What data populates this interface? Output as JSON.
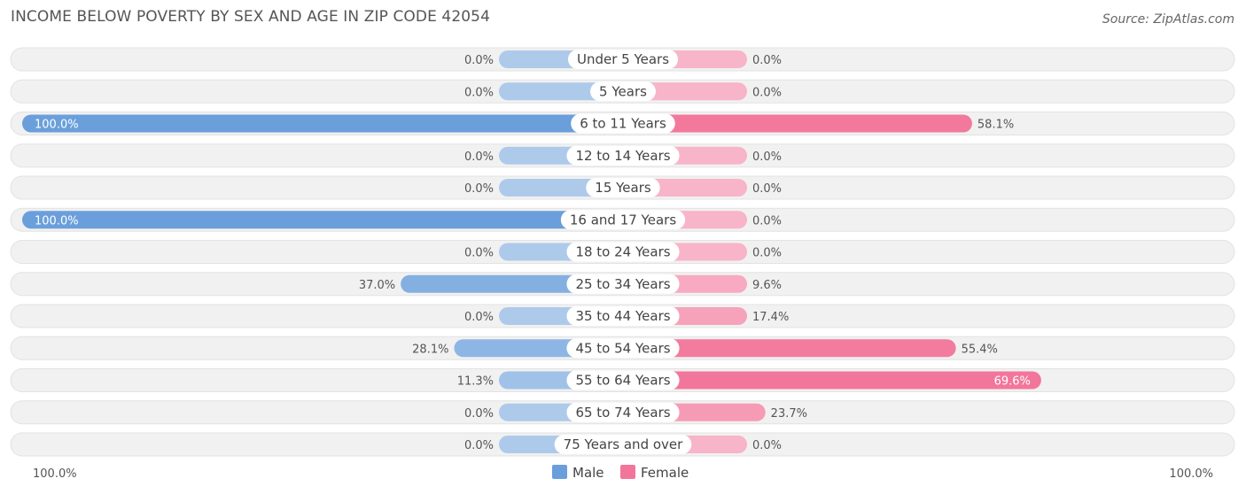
{
  "header": {
    "title": "INCOME BELOW POVERTY BY SEX AND AGE IN ZIP CODE 42054",
    "source": "Source: ZipAtlas.com"
  },
  "chart_data": {
    "type": "bar",
    "orientation": "horizontal-diverging",
    "categories": [
      "Under 5 Years",
      "5 Years",
      "6 to 11 Years",
      "12 to 14 Years",
      "15 Years",
      "16 and 17 Years",
      "18 to 24 Years",
      "25 to 34 Years",
      "35 to 44 Years",
      "45 to 54 Years",
      "55 to 64 Years",
      "65 to 74 Years",
      "75 Years and over"
    ],
    "series": [
      {
        "name": "Male",
        "color": "#6a9fdb",
        "values": [
          0.0,
          0.0,
          100.0,
          0.0,
          0.0,
          100.0,
          0.0,
          37.0,
          0.0,
          28.1,
          11.3,
          0.0,
          0.0
        ],
        "labels": [
          "0.0%",
          "0.0%",
          "100.0%",
          "0.0%",
          "0.0%",
          "100.0%",
          "0.0%",
          "37.0%",
          "0.0%",
          "28.1%",
          "11.3%",
          "0.0%",
          "0.0%"
        ]
      },
      {
        "name": "Female",
        "color": "#f2769b",
        "values": [
          0.0,
          0.0,
          58.1,
          0.0,
          0.0,
          0.0,
          0.0,
          9.6,
          17.4,
          55.4,
          69.6,
          23.7,
          0.0
        ],
        "labels": [
          "0.0%",
          "0.0%",
          "58.1%",
          "0.0%",
          "0.0%",
          "0.0%",
          "0.0%",
          "9.6%",
          "17.4%",
          "55.4%",
          "69.6%",
          "23.7%",
          "0.0%"
        ]
      }
    ],
    "xlim": [
      -100,
      100
    ],
    "axis_labels": {
      "left": "100.0%",
      "right": "100.0%"
    },
    "legend": {
      "position": "bottom-center",
      "items": [
        "Male",
        "Female"
      ]
    },
    "grid": false
  }
}
